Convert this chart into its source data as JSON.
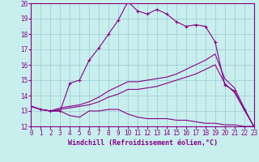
{
  "xlabel": "Windchill (Refroidissement éolien,°C)",
  "bg_color": "#c8eeee",
  "line_color": "#880088",
  "grid_color": "#99cccc",
  "xlim": [
    0,
    23
  ],
  "ylim": [
    12,
    20
  ],
  "xticks": [
    0,
    1,
    2,
    3,
    4,
    5,
    6,
    7,
    8,
    9,
    10,
    11,
    12,
    13,
    14,
    15,
    16,
    17,
    18,
    19,
    20,
    21,
    22,
    23
  ],
  "yticks": [
    12,
    13,
    14,
    15,
    16,
    17,
    18,
    19,
    20
  ],
  "line1_x": [
    0,
    1,
    2,
    3,
    4,
    5,
    6,
    7,
    8,
    9,
    10,
    11,
    12,
    13,
    14,
    15,
    16,
    17,
    18,
    19,
    20,
    21,
    22,
    23
  ],
  "line1_y": [
    13.3,
    13.1,
    13.0,
    13.0,
    14.8,
    15.0,
    16.3,
    17.1,
    18.0,
    18.9,
    20.1,
    19.5,
    19.3,
    19.6,
    19.3,
    18.8,
    18.5,
    18.6,
    18.5,
    17.5,
    14.7,
    14.3,
    13.1,
    12.0
  ],
  "line2_x": [
    0,
    1,
    2,
    3,
    4,
    5,
    6,
    7,
    8,
    9,
    10,
    11,
    12,
    13,
    14,
    15,
    16,
    17,
    18,
    19,
    20,
    21,
    22,
    23
  ],
  "line2_y": [
    13.3,
    13.1,
    13.0,
    13.0,
    12.7,
    12.6,
    13.0,
    13.0,
    13.1,
    13.1,
    12.8,
    12.6,
    12.5,
    12.5,
    12.5,
    12.4,
    12.4,
    12.3,
    12.2,
    12.2,
    12.1,
    12.1,
    12.0,
    12.0
  ],
  "line3_x": [
    0,
    1,
    2,
    3,
    4,
    5,
    6,
    7,
    8,
    9,
    10,
    11,
    12,
    13,
    14,
    15,
    16,
    17,
    18,
    19,
    20,
    21,
    22,
    23
  ],
  "line3_y": [
    13.3,
    13.1,
    13.0,
    13.2,
    13.3,
    13.4,
    13.6,
    13.9,
    14.3,
    14.6,
    14.9,
    14.9,
    15.0,
    15.1,
    15.2,
    15.4,
    15.7,
    16.0,
    16.3,
    16.7,
    15.1,
    14.5,
    13.2,
    12.0
  ],
  "line4_x": [
    0,
    1,
    2,
    3,
    4,
    5,
    6,
    7,
    8,
    9,
    10,
    11,
    12,
    13,
    14,
    15,
    16,
    17,
    18,
    19,
    20,
    21,
    22,
    23
  ],
  "line4_y": [
    13.3,
    13.1,
    13.0,
    13.1,
    13.2,
    13.3,
    13.4,
    13.6,
    13.9,
    14.1,
    14.4,
    14.4,
    14.5,
    14.6,
    14.8,
    15.0,
    15.2,
    15.4,
    15.7,
    16.0,
    14.8,
    14.2,
    13.1,
    12.0
  ]
}
